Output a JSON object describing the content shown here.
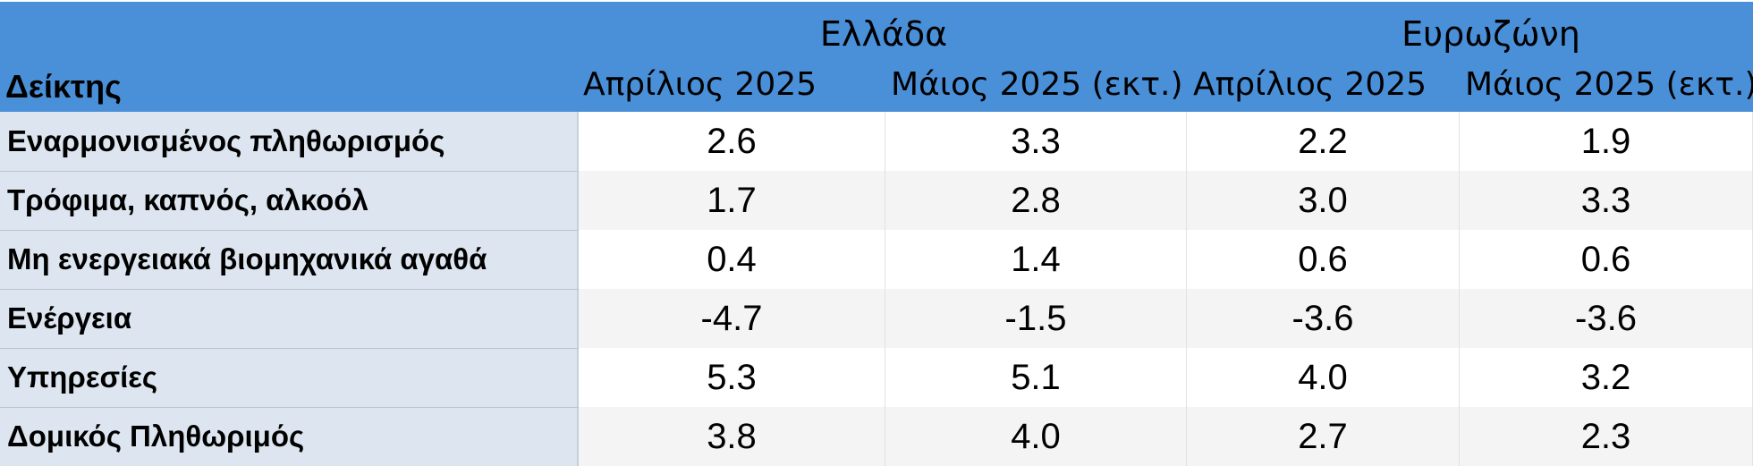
{
  "header": {
    "row_label": "Δείκτης",
    "groups": [
      "Ελλάδα",
      "Ευρωζώνη"
    ],
    "columns": [
      "Απρίλιος 2025",
      "Μάιος 2025 (εκτ.)",
      "Απρίλιος 2025",
      "Μάιος 2025 (εκτ.)"
    ]
  },
  "rows": [
    {
      "label": "Εναρμονισμένος πληθωρισμός",
      "values": [
        "2.6",
        "3.3",
        "2.2",
        "1.9"
      ]
    },
    {
      "label": "Τρόφιμα, καπνός, αλκοόλ",
      "values": [
        "1.7",
        "2.8",
        "3.0",
        "3.3"
      ]
    },
    {
      "label": "Μη ενεργειακά βιομηχανικά αγαθά",
      "values": [
        "0.4",
        "1.4",
        "0.6",
        "0.6"
      ]
    },
    {
      "label": "Ενέργεια",
      "values": [
        "-4.7",
        "-1.5",
        "-3.6",
        "-3.6"
      ]
    },
    {
      "label": "Υπηρεσίες",
      "values": [
        "5.3",
        "5.1",
        "4.0",
        "3.2"
      ]
    },
    {
      "label": "Δομικός Πληθωριμός",
      "values": [
        "3.8",
        "4.0",
        "2.7",
        "2.3"
      ]
    }
  ],
  "colors": {
    "header": "#4a90d9",
    "label_column": "#dde6f0",
    "alt_row": "#f4f4f4"
  }
}
